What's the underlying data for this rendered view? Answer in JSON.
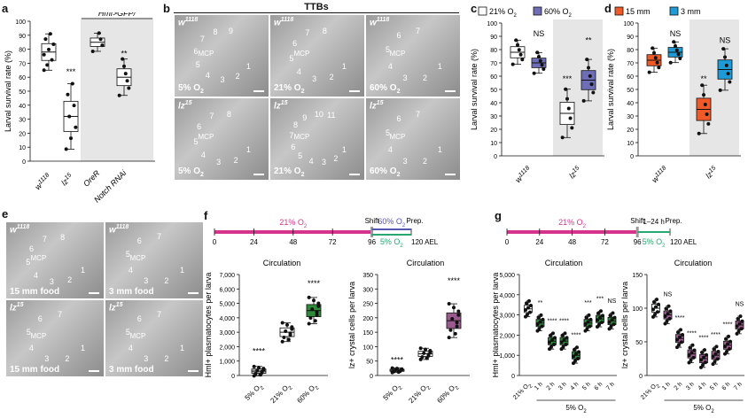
{
  "panels": {
    "a": "a",
    "b": "b",
    "c": "c",
    "d": "d",
    "e": "e",
    "f": "f",
    "g": "g"
  },
  "panel_a": {
    "header_line1": "Hml>GFP/",
    "ylabel": "Larval survival rate (%)",
    "yticks": [
      "0",
      "10",
      "20",
      "30",
      "40",
      "50",
      "60",
      "70",
      "80",
      "90",
      "100"
    ],
    "groups": [
      "w1118",
      "lz15",
      "OreR",
      "Notch RNAi"
    ],
    "sig": [
      "***",
      "**"
    ]
  },
  "panel_b": {
    "title": "TTBs",
    "tiles": [
      {
        "genotype": "w1118",
        "condition": "5% O2",
        "nums": [
          "1",
          "2",
          "3",
          "4",
          "5",
          "6",
          "7",
          "8",
          "9"
        ]
      },
      {
        "genotype": "w1118",
        "condition": "21% O2",
        "nums": [
          "1",
          "2",
          "3",
          "4",
          "5",
          "6",
          "7",
          "8"
        ]
      },
      {
        "genotype": "w1118",
        "condition": "60% O2",
        "nums": [
          "1",
          "2",
          "3",
          "4",
          "5",
          "6",
          "7"
        ]
      },
      {
        "genotype": "lz15",
        "condition": "5% O2",
        "nums": [
          "1",
          "2",
          "3",
          "4",
          "5",
          "6",
          "7",
          "8"
        ]
      },
      {
        "genotype": "lz15",
        "condition": "21% O2",
        "nums": [
          "1",
          "2",
          "3",
          "4",
          "5",
          "6",
          "7",
          "8",
          "9",
          "10",
          "11"
        ]
      },
      {
        "genotype": "lz15",
        "condition": "60% O2",
        "nums": [
          "1",
          "2",
          "3",
          "4",
          "5",
          "6",
          "7"
        ]
      }
    ],
    "mcp_label": "MCP"
  },
  "panel_c": {
    "legend": [
      "21% O2",
      "60% O2"
    ],
    "colors": [
      "#ffffff",
      "#6e6eb8"
    ],
    "ylabel": "Larval survival rate (%)",
    "groups": [
      "w1118",
      "lz15"
    ],
    "sig": [
      "NS",
      "***",
      "**"
    ]
  },
  "panel_d": {
    "legend": [
      "15 mm",
      "3 mm"
    ],
    "colors": [
      "#f05a28",
      "#1e9bd7"
    ],
    "ylabel": "Larval survival rate (%)",
    "groups": [
      "w1118",
      "lz15"
    ],
    "sig": [
      "NS",
      "**",
      "NS"
    ]
  },
  "panel_e": {
    "tiles": [
      {
        "genotype": "w1118",
        "condition": "15 mm food",
        "nums": [
          "1",
          "2",
          "3",
          "4",
          "5",
          "6",
          "7",
          "8"
        ]
      },
      {
        "genotype": "w1118",
        "condition": "3 mm food",
        "nums": [
          "1",
          "2",
          "3",
          "4",
          "5",
          "6",
          "7"
        ]
      },
      {
        "genotype": "lz15",
        "condition": "15 mm food",
        "nums": [
          "1",
          "2",
          "3",
          "4",
          "5",
          "6",
          "7"
        ]
      },
      {
        "genotype": "lz15",
        "condition": "3 mm food",
        "nums": [
          "1",
          "2",
          "3",
          "4",
          "5",
          "6",
          "7"
        ]
      }
    ],
    "mcp_label": "MCP"
  },
  "panel_f": {
    "timeline": {
      "ticks": [
        "0",
        "24",
        "48",
        "72",
        "96",
        "120 AEL"
      ],
      "o21": "21% O2",
      "o60": "60% O2",
      "o5": "5% O2",
      "shift": "Shift",
      "prep": "Prep."
    },
    "left": {
      "title": "Circulation",
      "ylabel": "Hml+ plasmatocytes per larva",
      "yticks": [
        "0",
        "1,000",
        "2,000",
        "3,000",
        "4,000",
        "5,000",
        "6,000",
        "7,000"
      ],
      "xcats": [
        "5% O2",
        "21% O2",
        "60% O2"
      ],
      "sig": "****"
    },
    "right": {
      "title": "Circulation",
      "ylabel": "lz+ crystal cells per larva",
      "yticks": [
        "0",
        "50",
        "100",
        "150",
        "200",
        "250",
        "300",
        "350"
      ],
      "xcats": [
        "5% O2",
        "21% O2",
        "60% O2"
      ],
      "sig": [
        "****",
        "****"
      ]
    }
  },
  "panel_g": {
    "timeline": {
      "ticks": [
        "0",
        "24",
        "48",
        "72",
        "96",
        "120 AEL"
      ],
      "o21": "21% O2",
      "o5": "5% O2",
      "shift": "Shift",
      "prep": "Prep.",
      "dur": "1–24 h"
    },
    "left": {
      "title": "Circulation",
      "ylabel": "Hml+ plasmatocytes per larva",
      "yticks": [
        "0",
        "1,000",
        "2,000",
        "3,000",
        "4,000",
        "5,000"
      ],
      "xcats": [
        "21% O2",
        "1 h",
        "2 h",
        "3 h",
        "4 h",
        "5 h",
        "6 h",
        "7 h"
      ],
      "group_label": "5% O2"
    },
    "right": {
      "title": "Circulation",
      "ylabel": "lz+ crystal cells per larva",
      "yticks": [
        "0",
        "50",
        "100",
        "150"
      ],
      "xcats": [
        "21% O2",
        "1 h",
        "2 h",
        "3 h",
        "4 h",
        "5 h",
        "6 h",
        "7 h"
      ],
      "group_label": "5% O2"
    }
  },
  "chart_data": [
    {
      "type": "box",
      "panel": "a",
      "categories": [
        "w1118",
        "lz15",
        "OreR",
        "Notch RNAi"
      ],
      "medians": [
        78,
        32,
        85,
        60
      ],
      "ylim": [
        0,
        100
      ],
      "ylabel": "Larval survival rate (%)"
    },
    {
      "type": "box",
      "panel": "c",
      "categories": [
        "w1118",
        "lz15"
      ],
      "series": [
        {
          "name": "21% O2",
          "medians": [
            78,
            32
          ]
        },
        {
          "name": "60% O2",
          "medians": [
            70,
            57
          ]
        }
      ],
      "ylim": [
        0,
        100
      ],
      "ylabel": "Larval survival rate (%)"
    },
    {
      "type": "box",
      "panel": "d",
      "categories": [
        "w1118",
        "lz15"
      ],
      "series": [
        {
          "name": "15 mm",
          "medians": [
            72,
            35
          ]
        },
        {
          "name": "3 mm",
          "medians": [
            78,
            65
          ]
        }
      ],
      "ylim": [
        0,
        100
      ],
      "ylabel": "Larval survival rate (%)"
    },
    {
      "type": "box",
      "panel": "f-left",
      "categories": [
        "5% O2",
        "21% O2",
        "60% O2"
      ],
      "medians": [
        300,
        3000,
        4500
      ],
      "ylim": [
        0,
        7000
      ],
      "ylabel": "Hml+ plasmatocytes per larva"
    },
    {
      "type": "box",
      "panel": "f-right",
      "categories": [
        "5% O2",
        "21% O2",
        "60% O2"
      ],
      "medians": [
        18,
        75,
        190
      ],
      "ylim": [
        0,
        350
      ],
      "ylabel": "lz+ crystal cells per larva"
    },
    {
      "type": "box",
      "panel": "g-left",
      "categories": [
        "21% O2",
        "1 h",
        "2 h",
        "3 h",
        "4 h",
        "5 h",
        "6 h",
        "7 h"
      ],
      "medians": [
        3300,
        2600,
        1700,
        1700,
        1000,
        2600,
        2800,
        2700
      ],
      "ylim": [
        0,
        5000
      ],
      "ylabel": "Hml+ plasmatocytes per larva",
      "sig": [
        "",
        "**",
        "****",
        "****",
        "****",
        "***",
        "***",
        "NS"
      ]
    },
    {
      "type": "box",
      "panel": "g-right",
      "categories": [
        "21% O2",
        "1 h",
        "2 h",
        "3 h",
        "4 h",
        "5 h",
        "6 h",
        "7 h"
      ],
      "medians": [
        100,
        90,
        55,
        32,
        25,
        30,
        45,
        75
      ],
      "ylim": [
        0,
        150
      ],
      "ylabel": "lz+ crystal cells per larva",
      "sig": [
        "",
        "NS",
        "****",
        "****",
        "****",
        "****",
        "****",
        "NS"
      ]
    }
  ]
}
